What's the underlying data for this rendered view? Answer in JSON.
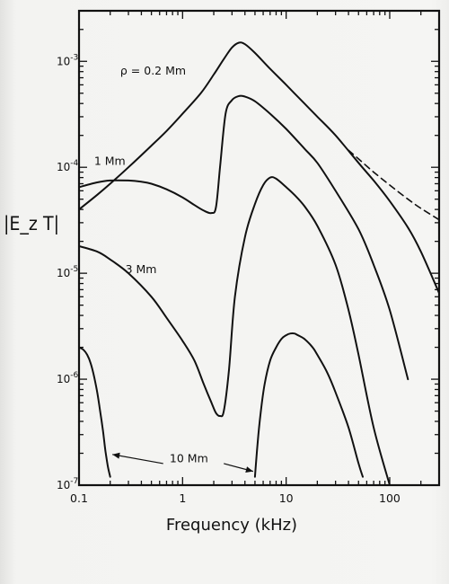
{
  "chart_data": {
    "type": "line",
    "title": "",
    "xlabel": "Frequency (kHz)",
    "ylabel": "|E_z T|",
    "x_scale": "log",
    "y_scale": "log",
    "xlim": [
      0.1,
      300
    ],
    "ylim": [
      1e-07,
      0.003
    ],
    "x_ticks": [
      {
        "value": 0.1,
        "label": "0.1"
      },
      {
        "value": 1,
        "label": "1"
      },
      {
        "value": 10,
        "label": "10"
      },
      {
        "value": 100,
        "label": "100"
      }
    ],
    "y_ticks": [
      {
        "value": 1e-07,
        "mantissa": "10",
        "exp": "-7"
      },
      {
        "value": 1e-06,
        "mantissa": "10",
        "exp": "-6"
      },
      {
        "value": 1e-05,
        "mantissa": "10",
        "exp": "-5"
      },
      {
        "value": 0.0001,
        "mantissa": "10",
        "exp": "-4"
      },
      {
        "value": 0.001,
        "mantissa": "10",
        "exp": "-3"
      }
    ],
    "grid": false,
    "legend": "none",
    "series": [
      {
        "name": "ρ = 0.2 Mm",
        "style": "solid",
        "x": [
          0.1,
          0.15,
          0.2,
          0.3,
          0.5,
          0.7,
          1,
          1.5,
          2,
          2.5,
          3,
          3.5,
          4,
          5,
          7,
          10,
          15,
          20,
          30,
          50,
          70,
          100,
          150,
          200,
          300
        ],
        "y": [
          4e-05,
          5.5e-05,
          7e-05,
          0.0001,
          0.00016,
          0.00022,
          0.00032,
          0.0005,
          0.00075,
          0.00105,
          0.00135,
          0.0015,
          0.00145,
          0.0012,
          0.00085,
          0.0006,
          0.0004,
          0.0003,
          0.0002,
          0.00011,
          7.5e-05,
          4.8e-05,
          2.7e-05,
          1.6e-05,
          6.5e-06
        ]
      },
      {
        "name": "ρ = 0.2 Mm (dashed)",
        "style": "dashed",
        "x": [
          40,
          50,
          70,
          100,
          150,
          200,
          300
        ],
        "y": [
          0.000145,
          0.00012,
          9e-05,
          6.8e-05,
          5e-05,
          4.1e-05,
          3.2e-05
        ]
      },
      {
        "name": "1 Mm",
        "style": "solid",
        "x": [
          0.1,
          0.15,
          0.2,
          0.3,
          0.4,
          0.5,
          0.7,
          1,
          1.3,
          1.6,
          1.9,
          2.1,
          2.3,
          2.6,
          3,
          3.5,
          4,
          5,
          7,
          10,
          15,
          20,
          30,
          50,
          70,
          100,
          150
        ],
        "y": [
          6.5e-05,
          7.2e-05,
          7.5e-05,
          7.5e-05,
          7.3e-05,
          7e-05,
          6.2e-05,
          5.2e-05,
          4.4e-05,
          3.9e-05,
          3.7e-05,
          4.2e-05,
          0.0001,
          0.00032,
          0.00043,
          0.00047,
          0.000465,
          0.00042,
          0.00032,
          0.00023,
          0.00015,
          0.00011,
          6e-05,
          2.6e-05,
          1.2e-05,
          4.5e-06,
          1e-06
        ]
      },
      {
        "name": "3 Mm",
        "style": "solid",
        "x": [
          0.1,
          0.15,
          0.2,
          0.3,
          0.5,
          0.7,
          1,
          1.3,
          1.6,
          1.9,
          2.1,
          2.3,
          2.5,
          2.8,
          3.2,
          4,
          5,
          6,
          7,
          8,
          10,
          12,
          15,
          20,
          30,
          40,
          50,
          70,
          100
        ],
        "y": [
          1.8e-05,
          1.6e-05,
          1.35e-05,
          1e-05,
          6e-06,
          3.8e-06,
          2.3e-06,
          1.5e-06,
          9e-07,
          6e-07,
          4.8e-07,
          4.5e-07,
          5e-07,
          1.2e-06,
          6e-06,
          2.2e-05,
          4.5e-05,
          6.8e-05,
          8e-05,
          7.8e-05,
          6.5e-05,
          5.5e-05,
          4.3e-05,
          2.8e-05,
          1.2e-05,
          4.5e-06,
          1.7e-06,
          3.5e-07,
          1e-07
        ]
      },
      {
        "name": "10 Mm (left)",
        "style": "solid",
        "x": [
          0.1,
          0.11,
          0.12,
          0.13,
          0.14,
          0.15,
          0.16,
          0.17,
          0.18,
          0.19,
          0.2
        ],
        "y": [
          2e-06,
          1.9e-06,
          1.7e-06,
          1.4e-06,
          1.05e-06,
          7.5e-07,
          5e-07,
          3.3e-07,
          2.1e-07,
          1.5e-07,
          1.2e-07
        ]
      },
      {
        "name": "10 Mm (right)",
        "style": "solid",
        "x": [
          5,
          5.3,
          5.7,
          6.2,
          7,
          8,
          9,
          10,
          11,
          12,
          13,
          15,
          18,
          20,
          25,
          30,
          40,
          50,
          55
        ],
        "y": [
          1.2e-07,
          2.5e-07,
          5e-07,
          9e-07,
          1.5e-06,
          2e-06,
          2.4e-06,
          2.6e-06,
          2.7e-06,
          2.7e-06,
          2.6e-06,
          2.4e-06,
          2e-06,
          1.7e-06,
          1.15e-06,
          7.5e-07,
          3.5e-07,
          1.6e-07,
          1.2e-07
        ]
      }
    ],
    "annotations": [
      {
        "id": "rho02",
        "text": "ρ = 0.2   Mm",
        "x": 0.25,
        "y": 0.00075
      },
      {
        "id": "1mm",
        "text": "1 Mm",
        "x": 0.14,
        "y": 0.000105
      },
      {
        "id": "3mm",
        "text": "3 Mm",
        "x": 0.28,
        "y": 1e-05
      },
      {
        "id": "10mm",
        "text": "10 Mm",
        "x": 0.75,
        "y": 1.65e-07
      }
    ],
    "arrows": [
      {
        "from_x": 0.65,
        "from_y": 1.6e-07,
        "to_x": 0.21,
        "to_y": 1.95e-07
      },
      {
        "from_x": 2.5,
        "from_y": 1.6e-07,
        "to_x": 4.8,
        "to_y": 1.35e-07
      }
    ]
  }
}
